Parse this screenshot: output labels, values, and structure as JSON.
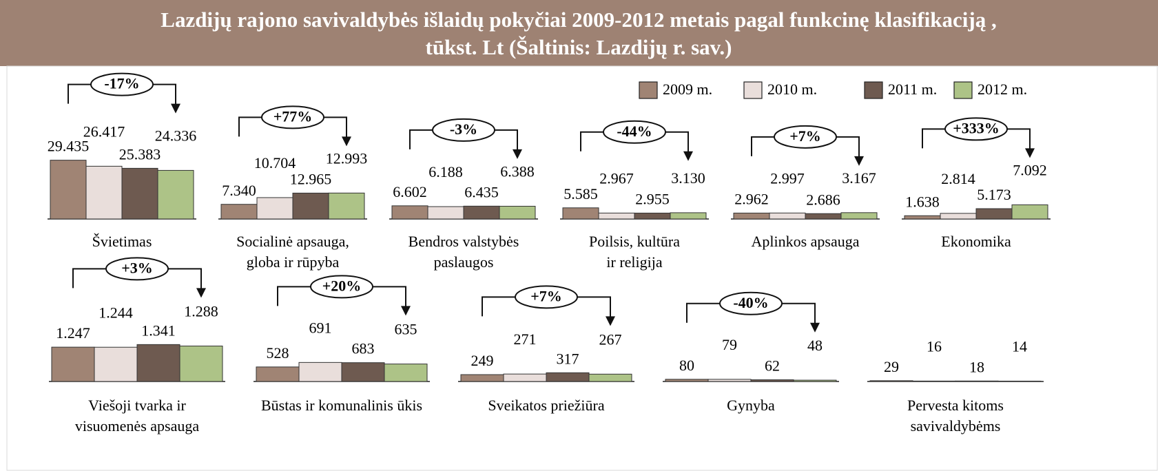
{
  "chart_data": [
    {
      "type": "bar",
      "title": [
        "Lazdijų rajono savivaldybės išlaidų pokyčiai 2009-2012 metais pagal funkcinę klasifikaciją ,",
        "tūkst. Lt (Šaltinis: Lazdijų r. sav.)"
      ],
      "categories": [
        [
          "Švietimas"
        ],
        [
          "Socialinė apsauga,",
          "globa ir rūpyba"
        ],
        [
          "Bendros valstybės",
          "paslaugos"
        ],
        [
          "Poilsis, kultūra",
          "ir religija"
        ],
        [
          "Aplinkos apsauga"
        ],
        [
          "Ekonomika"
        ]
      ],
      "annotations": [
        "-17%",
        "+77%",
        "-3%",
        "-44%",
        "+7%",
        "+333%"
      ],
      "ylim": [
        0,
        30000
      ],
      "legend": "top-right",
      "series": [
        {
          "name": "2009 m.",
          "color": "#a08474",
          "values": [
            29435,
            7340,
            6602,
            5585,
            2962,
            1638
          ],
          "value_labels": [
            "29.435",
            "7.340",
            "6.602",
            "5.585",
            "2.962",
            "1.638"
          ]
        },
        {
          "name": "2010 m.",
          "color": "#e9dedb",
          "values": [
            26417,
            10704,
            6188,
            2967,
            2997,
            2814
          ],
          "value_labels": [
            "26.417",
            "10.704",
            "6.188",
            "2.967",
            "2.997",
            "2.814"
          ]
        },
        {
          "name": "2011 m.",
          "color": "#6e5a50",
          "values": [
            25383,
            12965,
            6435,
            2955,
            2686,
            5173
          ],
          "value_labels": [
            "25.383",
            "12.965",
            "6.435",
            "2.955",
            "2.686",
            "5.173"
          ]
        },
        {
          "name": "2012 m.",
          "color": "#adc387",
          "values": [
            24336,
            12993,
            6388,
            3130,
            3167,
            7092
          ],
          "value_labels": [
            "24.336",
            "12.993",
            "6.388",
            "3.130",
            "3.167",
            "7.092"
          ]
        }
      ]
    },
    {
      "type": "bar",
      "categories": [
        [
          "Viešoji tvarka ir",
          "visuomenės apsauga"
        ],
        [
          "Būstas ir komunalinis ūkis"
        ],
        [
          "Sveikatos priežiūra"
        ],
        [
          "Gynyba"
        ],
        [
          "Pervesta kitoms",
          "savivaldybėms"
        ]
      ],
      "annotations": [
        "+3%",
        "+20%",
        "+7%",
        "-40%",
        null
      ],
      "ylim": [
        0,
        1300
      ],
      "series": [
        {
          "name": "2009 m.",
          "color": "#a08474",
          "values": [
            1247,
            528,
            249,
            80,
            29
          ],
          "value_labels": [
            "1.247",
            "528",
            "249",
            "80",
            "29"
          ]
        },
        {
          "name": "2010 m.",
          "color": "#e9dedb",
          "values": [
            1244,
            691,
            271,
            79,
            16
          ],
          "value_labels": [
            "1.244",
            "691",
            "271",
            "79",
            "16"
          ]
        },
        {
          "name": "2011 m.",
          "color": "#6e5a50",
          "values": [
            1341,
            683,
            317,
            62,
            18
          ],
          "value_labels": [
            "1.341",
            "683",
            "317",
            "62",
            "18"
          ]
        },
        {
          "name": "2012 m.",
          "color": "#adc387",
          "values": [
            1288,
            635,
            267,
            48,
            14
          ],
          "value_labels": [
            "1.288",
            "635",
            "267",
            "48",
            "14"
          ]
        }
      ]
    }
  ]
}
